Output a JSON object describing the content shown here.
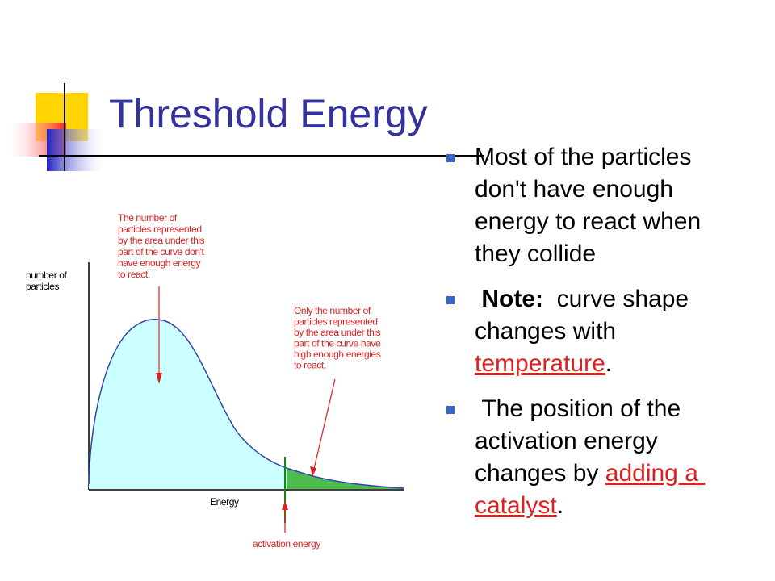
{
  "title": "Threshold Energy",
  "bullets": [
    {
      "parts": [
        {
          "text": "Most of the particles don't have enough energy to react when they collide"
        }
      ]
    },
    {
      "parts": [
        {
          "text": " Note:",
          "bold": true
        },
        {
          "text": "  curve shape changes with "
        },
        {
          "text": "temperature",
          "link": true
        },
        {
          "text": "."
        }
      ]
    },
    {
      "parts": [
        {
          "text": " The position of the activation energy changes by "
        },
        {
          "text": "adding a catalyst",
          "link": true
        },
        {
          "text": "."
        }
      ]
    }
  ],
  "diagram": {
    "y_axis_label": [
      "number of",
      "particles"
    ],
    "x_axis_label": "Energy",
    "annotation_left": [
      "The number of",
      "particles represented",
      "by the area under this",
      "part of the curve don't",
      "have enough energy",
      "to react."
    ],
    "annotation_right": [
      "Only the number of",
      "particles represented",
      "by the area under this",
      "part of the curve have",
      "high enough energies",
      "to react."
    ],
    "activation_label": "activation energy"
  }
}
